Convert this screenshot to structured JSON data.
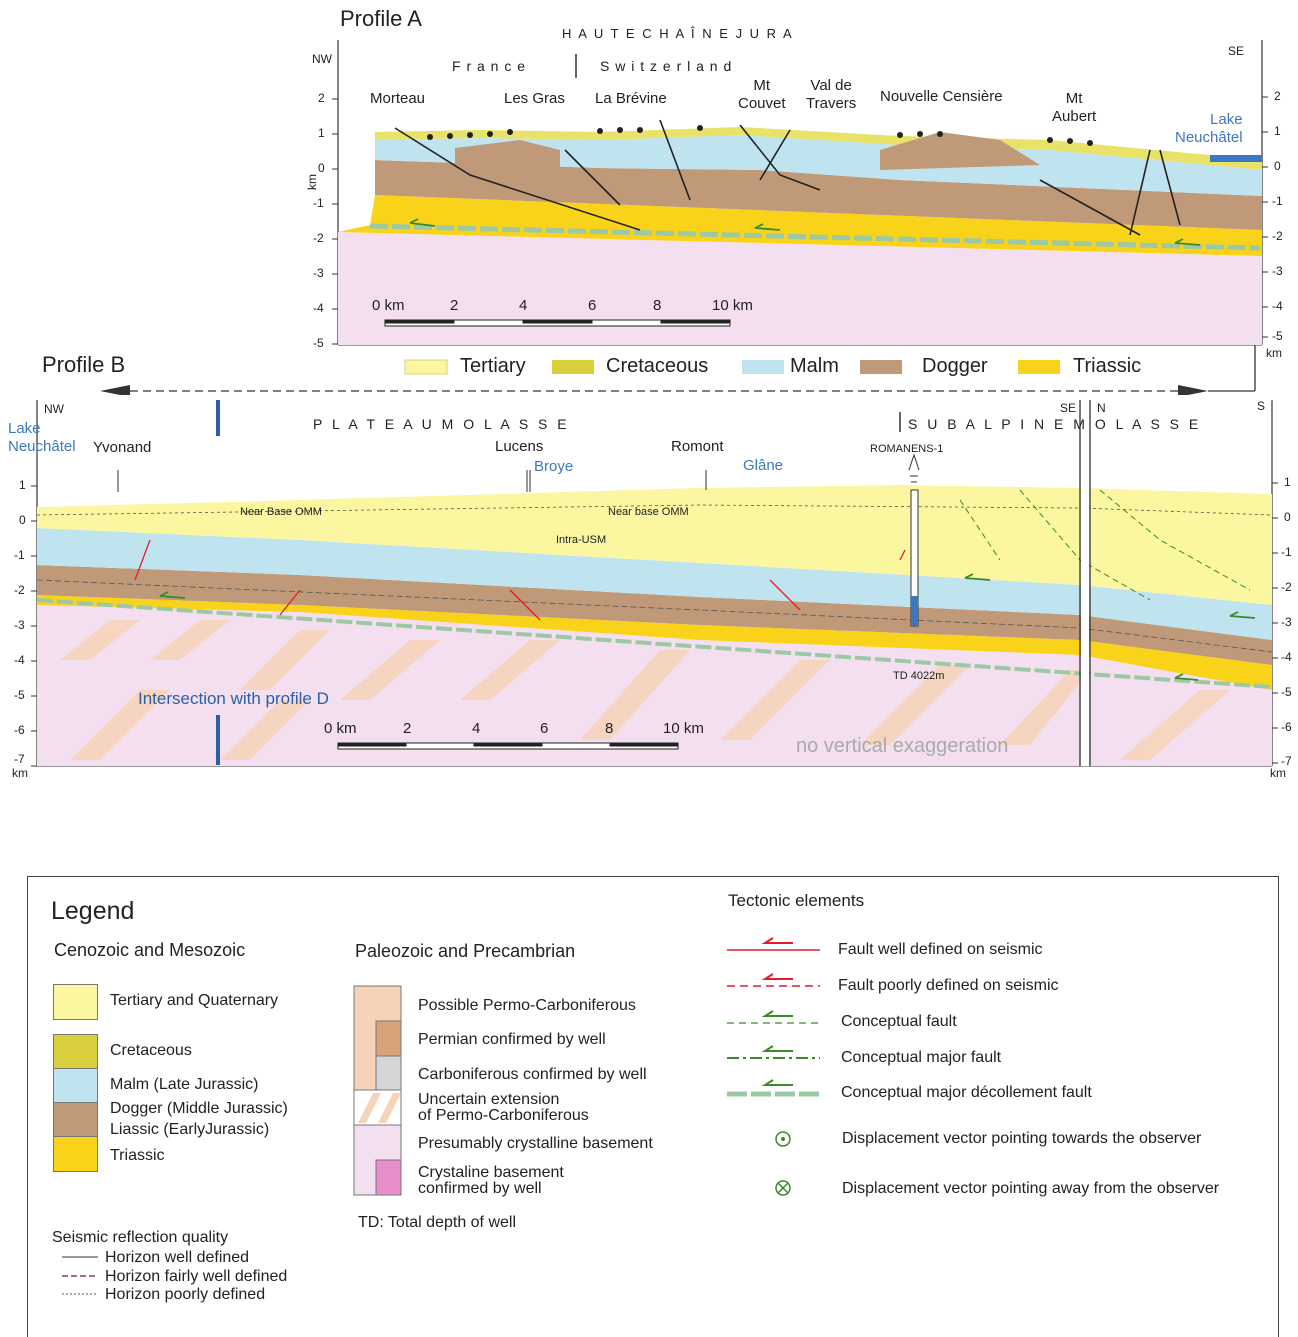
{
  "profile_a": {
    "title": "Profile A",
    "region": "H A U T E   C H A Î N E   J U R A",
    "country_left": "F r a n c e",
    "country_right": "S w i t z e r l a n d",
    "orient_left": "NW",
    "orient_right": "SE",
    "y_axis_label": "km",
    "y_axis_unit": "km",
    "y_ticks": [
      "2",
      "1",
      "0",
      "-1",
      "-2",
      "-3",
      "-4",
      "-5"
    ],
    "places": [
      "Morteau",
      "Les Gras",
      "La Brévine",
      "Mt\nCouvet",
      "Val de\nTravers",
      "Nouvelle Censière",
      "Mt\nAubert"
    ],
    "lake": "Lake\nNeuchâtel",
    "scale": [
      "0 km",
      "2",
      "4",
      "6",
      "8",
      "10 km"
    ]
  },
  "strip": {
    "items": [
      "Tertiary",
      "Cretaceous",
      "Malm",
      "Dogger",
      "Triassic"
    ]
  },
  "profile_b": {
    "title": "Profile B",
    "lake": "Lake\nNeuchâtel",
    "orient_left": "NW",
    "orient_se": "SE",
    "orient_n": "N",
    "orient_s": "S",
    "region_plateau": "P L A T E A U   M O L A S S E",
    "region_subalpine": "S U B A L P I N E   M O L A S S E",
    "places": [
      "Yvonand",
      "Lucens",
      "Broye",
      "Romont",
      "Glâne"
    ],
    "well": "ROMANENS-1",
    "horizons": [
      "Near Base OMM",
      "Near base OMM",
      "Intra-USM"
    ],
    "td": "TD 4022m",
    "intersection": "Intersection with profile D",
    "note": "no vertical exaggeration",
    "y_unit": "km",
    "y_ticks": [
      "1",
      "0",
      "-1",
      "-2",
      "-3",
      "-4",
      "-5",
      "-6",
      "-7"
    ],
    "scale": [
      "0 km",
      "2",
      "4",
      "6",
      "8",
      "10 km"
    ]
  },
  "legend": {
    "title": "Legend",
    "cenozoic_title": "Cenozoic and Mesozoic",
    "cenozoic": [
      "Tertiary and Quaternary",
      "Cretaceous",
      "Malm (Late Jurassic)",
      "Dogger (Middle Jurassic)",
      "Liassic (EarlyJurassic)",
      "Triassic"
    ],
    "paleozoic_title": "Paleozoic and Precambrian",
    "paleozoic": [
      "Possible Permo-Carboniferous",
      "Permian confirmed by well",
      "Carboniferous confirmed by well",
      "Uncertain extension\nof Permo-Carboniferous",
      "Presumably crystalline basement",
      "Crystaline basement\nconfirmed by well"
    ],
    "td_note": "TD: Total depth of well",
    "seismic_title": "Seismic reflection quality",
    "seismic": [
      "Horizon well defined",
      "Horizon fairly well defined",
      "Horizon poorly defined"
    ],
    "tectonic_title": "Tectonic elements",
    "tectonic": [
      "Fault well defined on seismic",
      "Fault poorly defined on seismic",
      "Conceptual fault",
      "Conceptual major fault",
      "Conceptual major décollement fault",
      "Displacement vector pointing towards the observer",
      "Displacement vector pointing away from the observer"
    ]
  },
  "colors": {
    "tertiary": "#fbf6a0",
    "cretaceous": "#d9cf3c",
    "malm": "#bfe4ef",
    "dogger": "#c09a78",
    "triassic": "#f9d31a",
    "basement": "#f3dff0",
    "permo": "#f6d3b8",
    "fault_red": "#e01b2c",
    "fault_green": "#3a8a2a",
    "decollement": "#9cc9a4",
    "water": "#3a78c2"
  }
}
